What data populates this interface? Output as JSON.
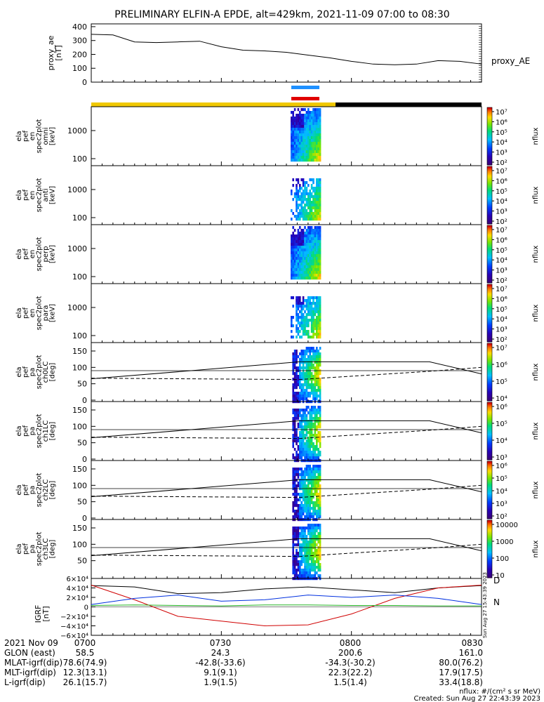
{
  "title": "PRELIMINARY ELFIN-A EPDE, alt=429km, 2021-11-09 07:00 to 08:30",
  "chart_data": [
    {
      "type": "line",
      "panel": "proxy_ae",
      "ylabel_lines": [
        "proxy_ae",
        "[nT]"
      ],
      "legend": "proxy_AE",
      "yticks": [
        "400",
        "300",
        "200",
        "100",
        "0"
      ],
      "ylim": [
        0,
        420
      ],
      "x_minutes": [
        0,
        5,
        10,
        15,
        20,
        25,
        30,
        35,
        40,
        45,
        50,
        55,
        60,
        65,
        70,
        75,
        80,
        85,
        90
      ],
      "values": [
        345,
        340,
        290,
        285,
        290,
        295,
        255,
        230,
        225,
        215,
        195,
        175,
        150,
        130,
        125,
        130,
        155,
        150,
        130
      ]
    },
    {
      "type": "heatmap",
      "panel": "omni_energy",
      "ylabel_lines": [
        "ela",
        "pef",
        "en",
        "spec2plot",
        "omni",
        "[keV]"
      ],
      "yticks": [
        "1000",
        "100"
      ],
      "zlabel": "nflux",
      "zticks": [
        "10^7",
        "10^6",
        "10^5",
        "10^4",
        "10^3",
        "10^2"
      ]
    },
    {
      "type": "heatmap",
      "panel": "anti_energy",
      "ylabel_lines": [
        "ela",
        "pef",
        "en",
        "spec2plot",
        "anti",
        "[keV]"
      ],
      "yticks": [
        "1000",
        "100"
      ],
      "zlabel": "nflux",
      "zticks": [
        "10^7",
        "10^6",
        "10^5",
        "10^4",
        "10^3",
        "10^2"
      ]
    },
    {
      "type": "heatmap",
      "panel": "perp_energy",
      "ylabel_lines": [
        "ela",
        "pef",
        "en",
        "spec2plot",
        "perp",
        "[keV]"
      ],
      "yticks": [
        "1000",
        "100"
      ],
      "zlabel": "nflux",
      "zticks": [
        "10^7",
        "10^6",
        "10^5",
        "10^4",
        "10^3",
        "10^2"
      ]
    },
    {
      "type": "heatmap",
      "panel": "para_energy",
      "ylabel_lines": [
        "ela",
        "pef",
        "en",
        "spec2plot",
        "para",
        "[keV]"
      ],
      "yticks": [
        "1000",
        "100"
      ],
      "zlabel": "nflux",
      "zticks": [
        "10^7",
        "10^6",
        "10^5",
        "10^4",
        "10^3",
        "10^2"
      ]
    },
    {
      "type": "heatmap",
      "panel": "ch0LC",
      "ylabel_lines": [
        "ela",
        "pef",
        "pa",
        "spec2plot",
        "ch0LC",
        "[deg]"
      ],
      "yticks": [
        "150",
        "100",
        "50",
        "0"
      ],
      "zlabel": "nflux",
      "zticks": [
        "10^7",
        "10^6",
        "10^5",
        "10^4"
      ]
    },
    {
      "type": "heatmap",
      "panel": "ch1LC",
      "ylabel_lines": [
        "ela",
        "pef",
        "pa",
        "spec2plot",
        "ch1LC",
        "[deg]"
      ],
      "yticks": [
        "150",
        "100",
        "50",
        "0"
      ],
      "zlabel": "nflux",
      "zticks": [
        "10^6",
        "10^5",
        "10^4",
        "10^3"
      ]
    },
    {
      "type": "heatmap",
      "panel": "ch2LC",
      "ylabel_lines": [
        "ela",
        "pef",
        "pa",
        "spec2plot",
        "ch2LC",
        "[deg]"
      ],
      "yticks": [
        "150",
        "100",
        "50",
        "0"
      ],
      "zlabel": "nflux",
      "zticks": [
        "10^6",
        "10^5",
        "10^4",
        "10^3",
        "10^2"
      ]
    },
    {
      "type": "heatmap",
      "panel": "ch3LC",
      "ylabel_lines": [
        "ela",
        "pef",
        "pa",
        "spec2plot",
        "ch3LC",
        "[deg]"
      ],
      "yticks": [
        "150",
        "100",
        "50"
      ],
      "zlabel": "nflux",
      "zticks": [
        "10000",
        "1000",
        "100",
        "10"
      ]
    },
    {
      "type": "line",
      "panel": "IGRF",
      "ylabel_lines": [
        "IGRF",
        "[nT]"
      ],
      "yticks": [
        "6×10⁴",
        "4×10⁴",
        "2×10⁴",
        "0",
        "−2×10⁴",
        "−4×10⁴",
        "−6×10⁴"
      ],
      "ylim": [
        -60000,
        60000
      ],
      "legend": [
        "D",
        "N"
      ],
      "x_minutes": [
        0,
        10,
        20,
        30,
        40,
        50,
        60,
        70,
        80,
        90
      ],
      "series": [
        {
          "values": [
            45000,
            42000,
            28000,
            30000,
            38000,
            42000,
            36000,
            30000,
            40000,
            45000
          ]
        },
        {
          "values": [
            46000,
            15000,
            -20000,
            -30000,
            -40000,
            -38000,
            -15000,
            18000,
            40000,
            46000
          ]
        },
        {
          "values": [
            5000,
            18000,
            25000,
            12000,
            15000,
            25000,
            20000,
            25000,
            18000,
            5000
          ]
        },
        {
          "values": [
            3000,
            4000,
            3000,
            2000,
            4000,
            4000,
            3000,
            3000,
            2000,
            2000
          ]
        }
      ]
    }
  ],
  "xaxis": {
    "rows": [
      {
        "label": "2021 Nov 09",
        "values": [
          "0700",
          "0730",
          "0800",
          "0830"
        ]
      },
      {
        "label": "GLON (east)",
        "values": [
          "58.5",
          "24.3",
          "200.6",
          "161.0"
        ]
      },
      {
        "label": "MLAT-igrf(dip)",
        "values": [
          "78.6(74.9)",
          "-42.8(-33.6)",
          "-34.3(-30.2)",
          "80.0(76.2)"
        ]
      },
      {
        "label": "MLT-igrf(dip)",
        "values": [
          "12.3(13.1)",
          "9.1(9.1)",
          "22.3(22.2)",
          "17.9(17.5)"
        ]
      },
      {
        "label": "L-igrf(dip)",
        "values": [
          "26.1(15.7)",
          "1.9(1.5)",
          "1.5(1.4)",
          "33.4(18.8)"
        ]
      }
    ]
  },
  "footer": {
    "units": "nflux: #/(cm^2 s sr MeV)",
    "created": "Created: Sun Aug 27 22:43:39 2023",
    "side_stamp": "Sun Aug 27 15:43:39 2023"
  }
}
